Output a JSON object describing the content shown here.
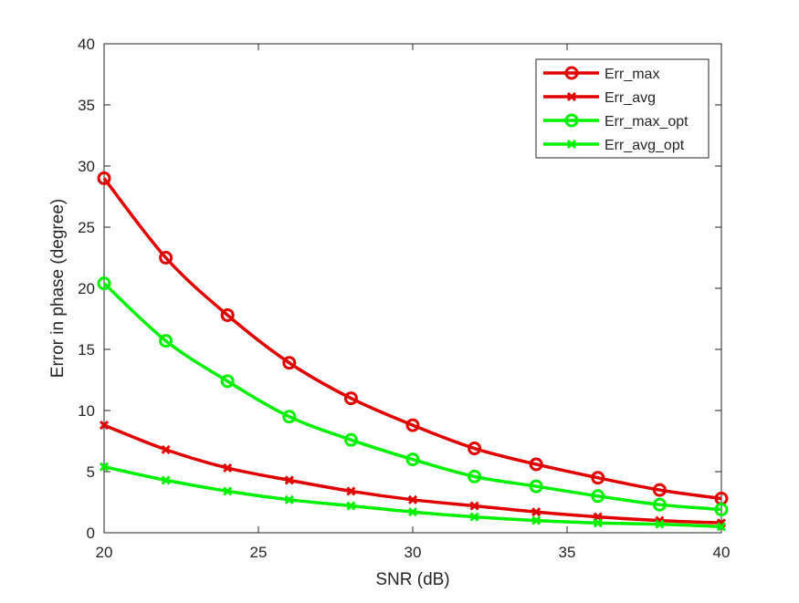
{
  "chart_data": {
    "type": "line",
    "title": "",
    "xlabel": "SNR (dB)",
    "ylabel": "Error in phase (degree)",
    "xlim": [
      20,
      40
    ],
    "ylim": [
      0,
      40
    ],
    "xticks": [
      20,
      25,
      30,
      35,
      40
    ],
    "yticks": [
      0,
      5,
      10,
      15,
      20,
      25,
      30,
      35,
      40
    ],
    "grid": false,
    "legend_position": "top-right",
    "x": [
      20,
      22,
      24,
      26,
      28,
      30,
      32,
      34,
      36,
      38,
      40
    ],
    "series": [
      {
        "name": "Err_max",
        "color": "#e00000",
        "marker": "circle",
        "values": [
          29.0,
          22.5,
          17.8,
          13.9,
          11.0,
          8.8,
          6.9,
          5.6,
          4.5,
          3.5,
          2.8
        ]
      },
      {
        "name": "Err_avg",
        "color": "#e00000",
        "marker": "x",
        "values": [
          8.8,
          6.8,
          5.3,
          4.3,
          3.4,
          2.7,
          2.2,
          1.7,
          1.3,
          1.0,
          0.8
        ]
      },
      {
        "name": "Err_max_opt",
        "color": "#00f000",
        "marker": "circle",
        "values": [
          20.4,
          15.7,
          12.4,
          9.5,
          7.6,
          6.0,
          4.6,
          3.8,
          3.0,
          2.3,
          1.9
        ]
      },
      {
        "name": "Err_avg_opt",
        "color": "#00f000",
        "marker": "x",
        "values": [
          5.4,
          4.3,
          3.4,
          2.7,
          2.2,
          1.7,
          1.3,
          1.0,
          0.8,
          0.7,
          0.5
        ]
      }
    ]
  }
}
